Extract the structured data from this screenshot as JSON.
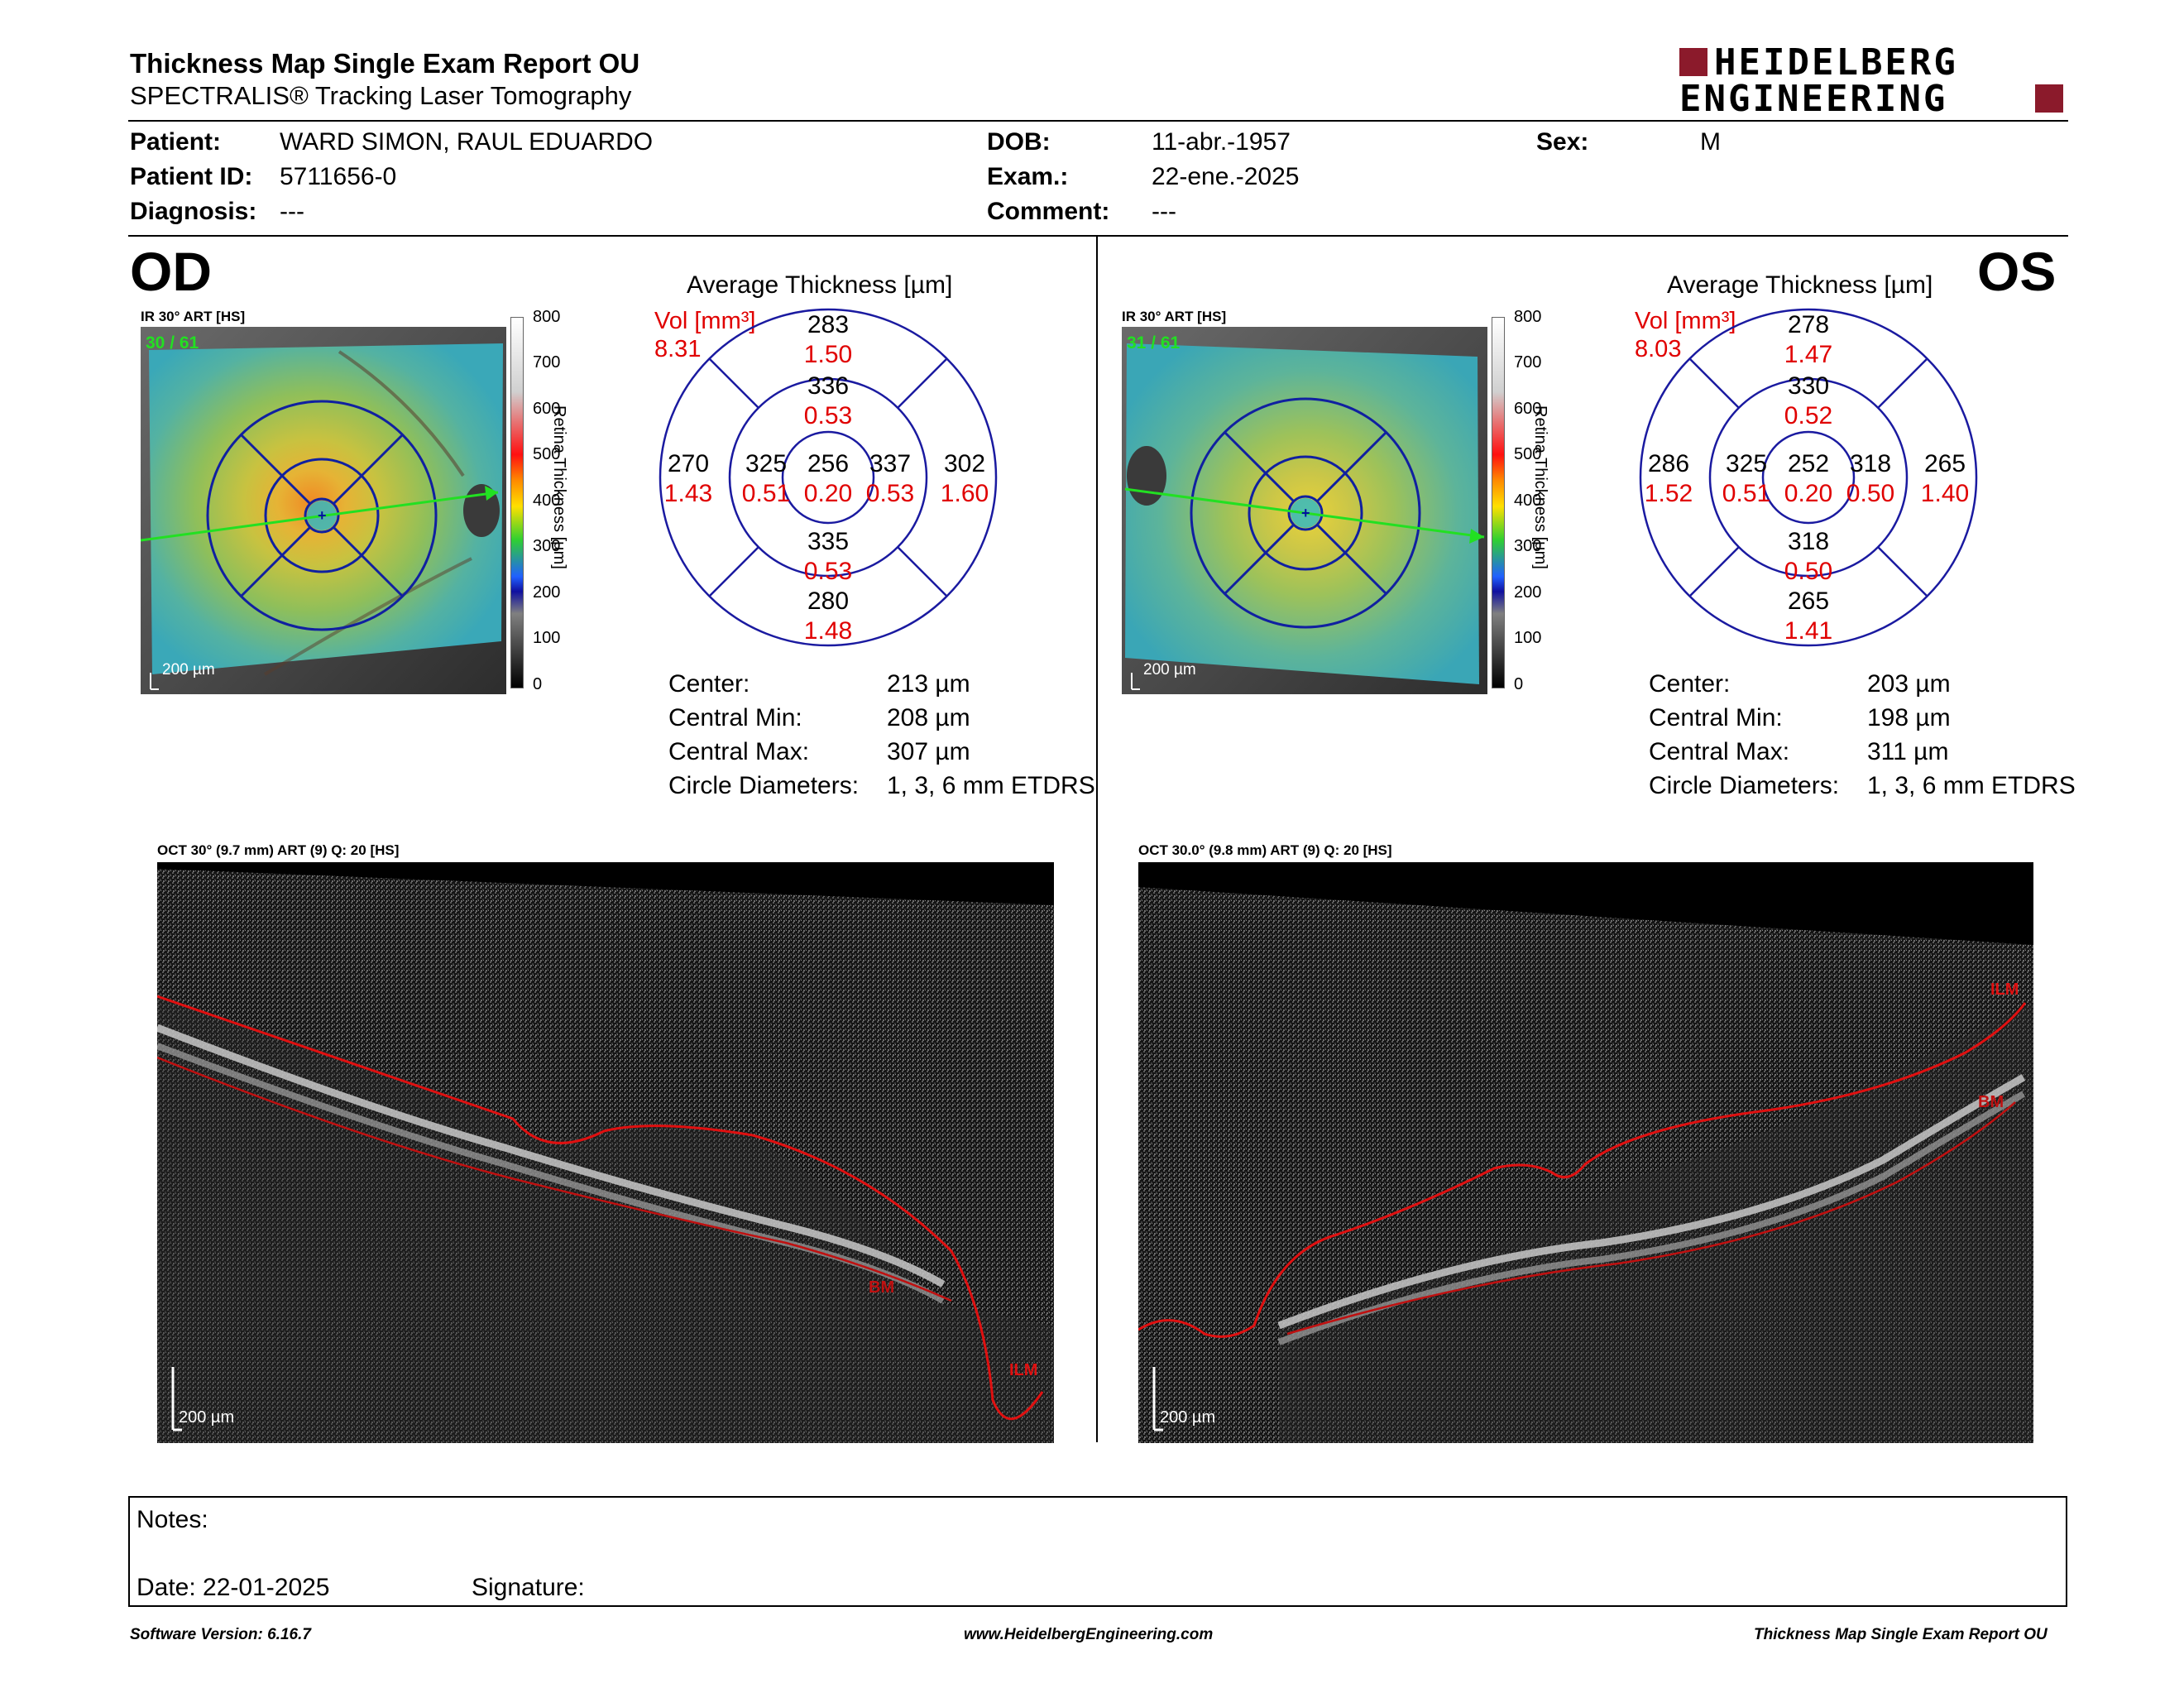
{
  "header": {
    "title": "Thickness Map Single Exam Report OU",
    "subtitle": "SPECTRALIS® Tracking Laser Tomography",
    "logo_line1": "HEIDELBERG",
    "logo_line2": "ENGINEERING",
    "brand_color": "#8b1a2b"
  },
  "patient": {
    "patient_label": "Patient:",
    "patient_value": "WARD SIMON, RAUL EDUARDO",
    "id_label": "Patient ID:",
    "id_value": "5711656-0",
    "diag_label": "Diagnosis:",
    "diag_value": "---",
    "dob_label": "DOB:",
    "dob_value": "11-abr.-1957",
    "exam_label": "Exam.:",
    "exam_value": "22-ene.-2025",
    "comment_label": "Comment:",
    "comment_value": "---",
    "sex_label": "Sex:",
    "sex_value": "M"
  },
  "od": {
    "eye": "OD",
    "ir_label": "IR 30° ART [HS]",
    "ir_counter": "30 / 61",
    "scale": "200 µm",
    "colorbar_ticks": [
      "800",
      "700",
      "600",
      "500",
      "400",
      "300",
      "200",
      "100",
      "0"
    ],
    "colorbar_title": "Retina Thickness [µm]",
    "chart_title": "Average Thickness [µm]",
    "vol_label": "Vol [mm³]",
    "vol_value": "8.31",
    "sectors": {
      "center": {
        "t": "256",
        "v": "0.20"
      },
      "inner_sup": {
        "t": "336",
        "v": "0.53"
      },
      "inner_inf": {
        "t": "335",
        "v": "0.53"
      },
      "inner_left": {
        "t": "325",
        "v": "0.51"
      },
      "inner_right": {
        "t": "337",
        "v": "0.53"
      },
      "outer_sup": {
        "t": "283",
        "v": "1.50"
      },
      "outer_inf": {
        "t": "280",
        "v": "1.48"
      },
      "outer_left": {
        "t": "270",
        "v": "1.43"
      },
      "outer_right": {
        "t": "302",
        "v": "1.60"
      }
    },
    "stats": [
      {
        "label": "Center:",
        "value": "213 µm"
      },
      {
        "label": "Central Min:",
        "value": "208 µm"
      },
      {
        "label": "Central Max:",
        "value": "307 µm"
      },
      {
        "label": "Circle Diameters:",
        "value": "1, 3, 6 mm ETDRS"
      }
    ],
    "oct_label": "OCT 30° (9.7 mm) ART (9) Q: 20 [HS]",
    "oct_scale": "200 µm",
    "bm_tag": "BM",
    "ilm_tag": "ILM"
  },
  "os": {
    "eye": "OS",
    "ir_label": "IR 30° ART [HS]",
    "ir_counter": "31 / 61",
    "scale": "200 µm",
    "colorbar_ticks": [
      "800",
      "700",
      "600",
      "500",
      "400",
      "300",
      "200",
      "100",
      "0"
    ],
    "colorbar_title": "Retina Thickness [µm]",
    "chart_title": "Average Thickness [µm]",
    "vol_label": "Vol [mm³]",
    "vol_value": "8.03",
    "sectors": {
      "center": {
        "t": "252",
        "v": "0.20"
      },
      "inner_sup": {
        "t": "330",
        "v": "0.52"
      },
      "inner_inf": {
        "t": "318",
        "v": "0.50"
      },
      "inner_left": {
        "t": "325",
        "v": "0.51"
      },
      "inner_right": {
        "t": "318",
        "v": "0.50"
      },
      "outer_sup": {
        "t": "278",
        "v": "1.47"
      },
      "outer_inf": {
        "t": "265",
        "v": "1.41"
      },
      "outer_left": {
        "t": "286",
        "v": "1.52"
      },
      "outer_right": {
        "t": "265",
        "v": "1.40"
      }
    },
    "stats": [
      {
        "label": "Center:",
        "value": "203 µm"
      },
      {
        "label": "Central Min:",
        "value": "198 µm"
      },
      {
        "label": "Central Max:",
        "value": "311 µm"
      },
      {
        "label": "Circle Diameters:",
        "value": "1, 3, 6 mm ETDRS"
      }
    ],
    "oct_label": "OCT 30.0° (9.8 mm) ART (9) Q: 20 [HS]",
    "oct_scale": "200 µm",
    "bm_tag": "BM",
    "ilm_tag": "ILM"
  },
  "notes": {
    "notes_label": "Notes:",
    "date_label": "Date: 22-01-2025",
    "signature_label": "Signature:"
  },
  "footer": {
    "software": "Software Version: 6.16.7",
    "url": "www.HeidelbergEngineering.com",
    "report": "Thickness Map Single Exam Report OU"
  }
}
